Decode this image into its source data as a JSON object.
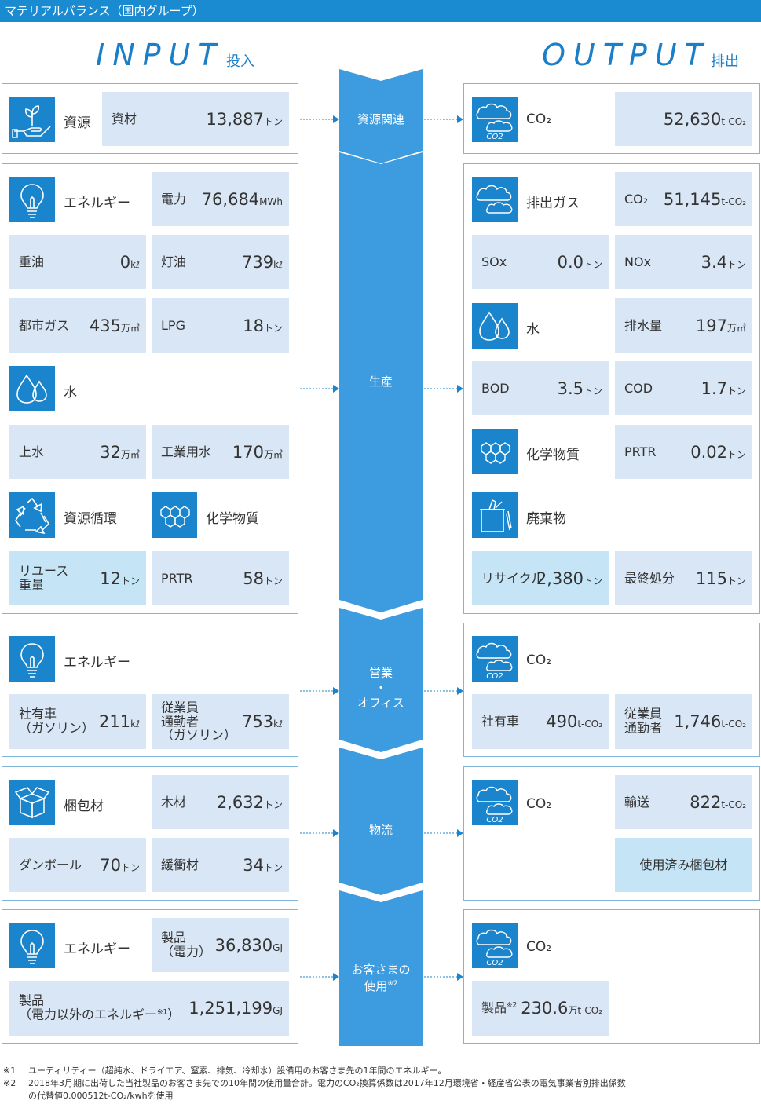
{
  "header": {
    "title": "マテリアルバランス（国内グループ）"
  },
  "titles": {
    "input": "INPUT",
    "input_jp": "投入",
    "output": "OUTPUT",
    "output_jp": "排出"
  },
  "stages": {
    "s1": "資源関連",
    "s2": "生産",
    "s3_line1": "営業",
    "s3_dot": "・",
    "s3_line2": "オフィス",
    "s4": "物流",
    "s5_line1": "お客さまの",
    "s5_line2": "使用",
    "s5_note": "※2"
  },
  "input": {
    "resource": {
      "label": "資源",
      "cell_label": "資材",
      "value": "13,887",
      "unit": "トン"
    },
    "production": {
      "energy_label": "エネルギー",
      "electricity": {
        "label": "電力",
        "value": "76,684",
        "unit": "MWh"
      },
      "heavy_oil": {
        "label": "重油",
        "value": "0",
        "unit": "kℓ"
      },
      "kerosene": {
        "label": "灯油",
        "value": "739",
        "unit": "kℓ"
      },
      "city_gas": {
        "label": "都市ガス",
        "value": "435",
        "unit": "万㎥"
      },
      "lpg": {
        "label": "LPG",
        "value": "18",
        "unit": "トン"
      },
      "water_label": "水",
      "tap_water": {
        "label": "上水",
        "value": "32",
        "unit": "万㎥"
      },
      "industrial_water": {
        "label": "工業用水",
        "value": "170",
        "unit": "万㎥"
      },
      "recycle_label": "資源循環",
      "chemical_label": "化学物質",
      "reuse": {
        "label1": "リユース",
        "label2": "重量",
        "value": "12",
        "unit": "トン"
      },
      "prtr": {
        "label": "PRTR",
        "value": "58",
        "unit": "トン"
      }
    },
    "office": {
      "energy_label": "エネルギー",
      "company_car": {
        "label1": "社有車",
        "label2": "（ガソリン）",
        "value": "211",
        "unit": "kℓ"
      },
      "commute": {
        "label1": "従業員",
        "label2": "通勤者",
        "label3": "（ガソリン）",
        "value": "753",
        "unit": "kℓ"
      }
    },
    "logistics": {
      "packaging_label": "梱包材",
      "wood": {
        "label": "木材",
        "value": "2,632",
        "unit": "トン"
      },
      "cardboard": {
        "label": "ダンボール",
        "value": "70",
        "unit": "トン"
      },
      "cushion": {
        "label": "緩衝材",
        "value": "34",
        "unit": "トン"
      }
    },
    "customer": {
      "energy_label": "エネルギー",
      "product_elec": {
        "label1": "製品",
        "label2": "（電力）",
        "value": "36,830",
        "unit": "GJ"
      },
      "product_other": {
        "label1": "製品",
        "label2": "（電力以外のエネルギー",
        "note": "※1",
        "label3": "）",
        "value": "1,251,199",
        "unit": "GJ"
      }
    }
  },
  "output": {
    "resource": {
      "label": "CO₂",
      "value": "52,630",
      "unit": "t-CO₂"
    },
    "production": {
      "exhaust_label": "排出ガス",
      "co2": {
        "label": "CO₂",
        "value": "51,145",
        "unit": "t-CO₂"
      },
      "sox": {
        "label": "SOx",
        "value": "0.0",
        "unit": "トン"
      },
      "nox": {
        "label": "NOx",
        "value": "3.4",
        "unit": "トン"
      },
      "water_label": "水",
      "drainage": {
        "label": "排水量",
        "value": "197",
        "unit": "万㎥"
      },
      "bod": {
        "label": "BOD",
        "value": "3.5",
        "unit": "トン"
      },
      "cod": {
        "label": "COD",
        "value": "1.7",
        "unit": "トン"
      },
      "chemical_label": "化学物質",
      "prtr": {
        "label": "PRTR",
        "value": "0.02",
        "unit": "トン"
      },
      "waste_label": "廃棄物",
      "recycle": {
        "label": "リサイクル",
        "value": "2,380",
        "unit": "トン"
      },
      "final_disposal": {
        "label": "最終処分",
        "value": "115",
        "unit": "トン"
      }
    },
    "office": {
      "co2_label": "CO₂",
      "company_car": {
        "label": "社有車",
        "value": "490",
        "unit": "t-CO₂"
      },
      "commute": {
        "label1": "従業員",
        "label2": "通勤者",
        "value": "1,746",
        "unit": "t-CO₂"
      }
    },
    "logistics": {
      "co2_label": "CO₂",
      "transport": {
        "label": "輸送",
        "value": "822",
        "unit": "t-CO₂"
      },
      "used_packaging": {
        "label": "使用済み梱包材"
      }
    },
    "customer": {
      "co2_label": "CO₂",
      "product": {
        "label": "製品",
        "note": "※2",
        "value": "230.6",
        "unit": "万t-CO₂"
      }
    }
  },
  "icon_text": {
    "co2": "CO2"
  },
  "notes": {
    "n1_mark": "※1",
    "n1_text": "ユーティリティー（超純水、ドライエア、窒素、排気、冷却水）設備用のお客さま先の1年間のエネルギー。",
    "n2_mark": "※2",
    "n2_text1": "2018年3月期に出荷した当社製品のお客さま先での10年間の使用量合計。電力のCO₂換算係数は2017年12月環境省・経産省公表の電気事業者別排出係数",
    "n2_text2": "の代替値0.000512t-CO₂/kwhを使用"
  },
  "colors": {
    "brand": "#1a8bd0",
    "icon_bg": "#1a84cc",
    "cell": "#d8e6f5",
    "cell_light": "#c5e5f7",
    "chevron": "#3d9be0"
  }
}
